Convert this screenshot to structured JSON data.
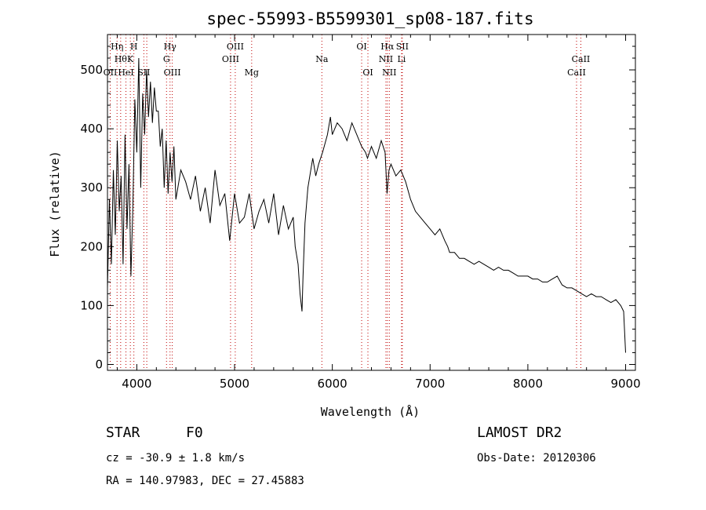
{
  "chart_data": {
    "type": "line",
    "title": "spec-55993-B5599301_sp08-187.fits",
    "xlabel": "Wavelength (Å)",
    "ylabel": "Flux (relative)",
    "xlim": [
      3700,
      9100
    ],
    "ylim": [
      -10,
      560
    ],
    "xticks": [
      4000,
      5000,
      6000,
      7000,
      8000,
      9000
    ],
    "yticks": [
      0,
      100,
      200,
      300,
      400,
      500
    ],
    "grid": false,
    "series": [
      {
        "x": [
          3700,
          3720,
          3740,
          3760,
          3780,
          3800,
          3820,
          3840,
          3860,
          3880,
          3900,
          3920,
          3940,
          3960,
          3980,
          4000,
          4020,
          4040,
          4060,
          4080,
          4100,
          4120,
          4140,
          4160,
          4180,
          4200,
          4220,
          4240,
          4260,
          4280,
          4300,
          4320,
          4340,
          4360,
          4380,
          4400,
          4450,
          4500,
          4550,
          4600,
          4650,
          4700,
          4750,
          4800,
          4850,
          4900,
          4950,
          5000,
          5050,
          5100,
          5150,
          5200,
          5250,
          5300,
          5350,
          5400,
          5450,
          5500,
          5550,
          5600,
          5620,
          5650,
          5670,
          5690,
          5700,
          5720,
          5750,
          5780,
          5800,
          5830,
          5860,
          5900,
          5950,
          5980,
          6000,
          6050,
          6100,
          6150,
          6200,
          6250,
          6300,
          6340,
          6360,
          6400,
          6450,
          6500,
          6540,
          6560,
          6580,
          6600,
          6650,
          6700,
          6750,
          6800,
          6850,
          6900,
          6950,
          7000,
          7050,
          7100,
          7150,
          7180,
          7200,
          7250,
          7300,
          7350,
          7400,
          7450,
          7500,
          7550,
          7600,
          7650,
          7700,
          7750,
          7800,
          7850,
          7900,
          7950,
          8000,
          8050,
          8100,
          8150,
          8200,
          8250,
          8300,
          8350,
          8400,
          8450,
          8500,
          8550,
          8600,
          8650,
          8700,
          8750,
          8800,
          8850,
          8900,
          8950,
          8980,
          9000
        ],
        "y": [
          130,
          280,
          170,
          330,
          220,
          380,
          260,
          320,
          170,
          390,
          230,
          340,
          150,
          270,
          450,
          360,
          520,
          300,
          460,
          390,
          500,
          420,
          480,
          410,
          470,
          430,
          430,
          370,
          400,
          300,
          380,
          290,
          360,
          310,
          370,
          280,
          330,
          310,
          280,
          320,
          260,
          300,
          240,
          330,
          270,
          290,
          210,
          290,
          240,
          250,
          290,
          230,
          260,
          280,
          240,
          290,
          220,
          270,
          230,
          250,
          200,
          170,
          120,
          90,
          150,
          240,
          300,
          330,
          350,
          320,
          340,
          360,
          390,
          420,
          390,
          410,
          400,
          380,
          410,
          390,
          370,
          360,
          350,
          370,
          350,
          380,
          360,
          290,
          330,
          340,
          320,
          330,
          310,
          280,
          260,
          250,
          240,
          230,
          220,
          230,
          210,
          200,
          190,
          190,
          180,
          180,
          175,
          170,
          175,
          170,
          165,
          160,
          165,
          160,
          160,
          155,
          150,
          150,
          150,
          145,
          145,
          140,
          140,
          145,
          150,
          135,
          130,
          130,
          125,
          120,
          115,
          120,
          115,
          115,
          110,
          105,
          110,
          100,
          90,
          20
        ]
      }
    ],
    "lines": [
      {
        "x": 3728,
        "label": "OII",
        "row": 3
      },
      {
        "x": 3798,
        "label": "Hη",
        "row": 1
      },
      {
        "x": 3835,
        "label": "Hθ",
        "row": 2
      },
      {
        "x": 3889,
        "label": "HeI",
        "row": 3
      },
      {
        "x": 3934,
        "label": "K",
        "row": 2
      },
      {
        "x": 3970,
        "label": "H",
        "row": 1
      },
      {
        "x": 4072,
        "label": "SII",
        "row": 3
      },
      {
        "x": 4102,
        "label": "",
        "row": 0
      },
      {
        "x": 4304,
        "label": "G",
        "row": 2
      },
      {
        "x": 4340,
        "label": "Hγ",
        "row": 1
      },
      {
        "x": 4363,
        "label": "OIII",
        "row": 3
      },
      {
        "x": 4959,
        "label": "OIII",
        "row": 2
      },
      {
        "x": 5007,
        "label": "OIII",
        "row": 1
      },
      {
        "x": 5175,
        "label": "Mg",
        "row": 3
      },
      {
        "x": 5893,
        "label": "Na",
        "row": 2
      },
      {
        "x": 6300,
        "label": "OI",
        "row": 1
      },
      {
        "x": 6364,
        "label": "OI",
        "row": 3
      },
      {
        "x": 6548,
        "label": "NII",
        "row": 2
      },
      {
        "x": 6563,
        "label": "Hα",
        "row": 1
      },
      {
        "x": 6583,
        "label": "NII",
        "row": 3
      },
      {
        "x": 6708,
        "label": "Li",
        "row": 2
      },
      {
        "x": 6716,
        "label": "SII",
        "row": 1
      },
      {
        "x": 8498,
        "label": "CaII",
        "row": 3
      },
      {
        "x": 8542,
        "label": "CaII",
        "row": 2
      }
    ],
    "colors": {
      "spectrum": "#000000",
      "line_marker": "#c00000"
    }
  },
  "info": {
    "object_class": "STAR",
    "subclass": "F0",
    "survey": "LAMOST DR2",
    "redshift": "cz = -30.9 ± 1.8 km/s",
    "obs_date": "Obs-Date: 20120306",
    "coords": "RA = 140.97983, DEC =  27.45883"
  }
}
